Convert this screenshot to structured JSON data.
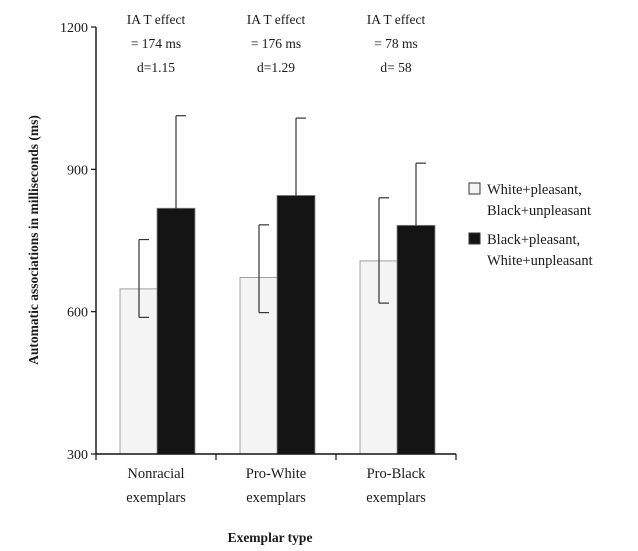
{
  "chart_data": {
    "type": "bar",
    "categories": [
      [
        "Nonracial",
        "exemplars"
      ],
      [
        "Pro-White",
        "exemplars"
      ],
      [
        "Pro-Black",
        "exemplars"
      ]
    ],
    "series": [
      {
        "name": [
          "White+pleasant,",
          "Black+unpleasant"
        ],
        "color": "#f4f4f4",
        "values": [
          648,
          672,
          707
        ],
        "error_upper": [
          752,
          783,
          840
        ],
        "error_lower": [
          588,
          598,
          618
        ]
      },
      {
        "name": [
          "Black+pleasant,",
          "White+unpleasant"
        ],
        "color": "#141414",
        "values": [
          818,
          845,
          782
        ],
        "error_upper": [
          1013,
          1008,
          913
        ]
      }
    ],
    "ylim": [
      300,
      1200
    ],
    "yticks": [
      "300",
      "600",
      "900",
      "1200"
    ],
    "ylabel": "Automatic associations in milliseconds (ms)",
    "xlabel": "Exemplar type",
    "annotations": [
      [
        "IA T effect",
        "= 174 ms",
        "d=1.15"
      ],
      [
        "IA T effect",
        "= 176 ms",
        "d=1.29"
      ],
      [
        "IA T effect",
        "= 78 ms",
        "d= 58"
      ]
    ],
    "legend_position": "right",
    "grid": false
  }
}
